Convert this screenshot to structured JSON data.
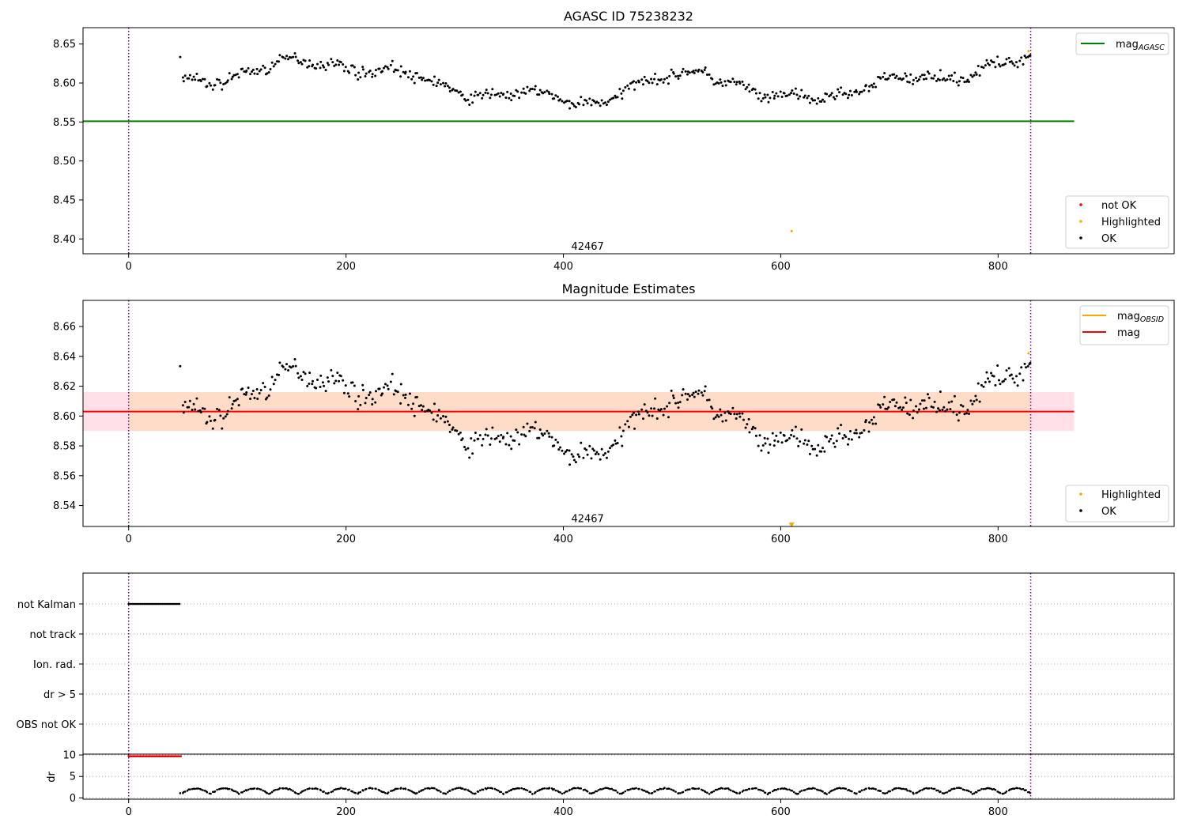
{
  "figure": {
    "title_top": "AGASC ID 75238232",
    "title_mid": "Magnitude Estimates"
  },
  "chart_data": [
    {
      "type": "scatter",
      "title": "AGASC ID 75238232",
      "xlabel": "",
      "ylabel": "",
      "xlim": [
        -42,
        962
      ],
      "ylim": [
        8.381,
        8.671
      ],
      "x_ticks": [
        0,
        200,
        400,
        600,
        800
      ],
      "y_ticks": [
        8.4,
        8.45,
        8.5,
        8.55,
        8.6,
        8.65
      ],
      "y_tick_labels": [
        "8.40",
        "8.45",
        "8.50",
        "8.55",
        "8.60",
        "8.65"
      ],
      "obsid_label": {
        "text": "42467",
        "x": 415,
        "y": 8.39
      },
      "obs_boundaries": [
        0,
        830
      ],
      "mag_agasc": 8.551,
      "mag_agasc_range": [
        -42,
        870
      ],
      "ok_series": {
        "x_start": 48,
        "x_end": 830,
        "count": 540,
        "segments": [
          {
            "x": [
              48,
              180
            ],
            "y": [
              8.6,
              8.63
            ]
          },
          {
            "x": [
              180,
              330
            ],
            "y": [
              8.63,
              8.585
            ]
          },
          {
            "x": [
              330,
              430
            ],
            "y": [
              8.585,
              8.578
            ]
          },
          {
            "x": [
              430,
              530
            ],
            "y": [
              8.578,
              8.62
            ]
          },
          {
            "x": [
              530,
              590
            ],
            "y": [
              8.62,
              8.575
            ]
          },
          {
            "x": [
              590,
              830
            ],
            "y": [
              8.575,
              8.628
            ]
          }
        ]
      },
      "highlighted": [
        {
          "x": 610,
          "y": 8.41
        },
        {
          "x": 828,
          "y": 8.641
        }
      ],
      "legend_upper": [
        {
          "label": "mag",
          "sub": "AGASC",
          "color": "#008000",
          "kind": "line"
        }
      ],
      "legend_lower": [
        {
          "label": "not OK",
          "color": "#ff0000",
          "kind": "dot"
        },
        {
          "label": "Highlighted",
          "color": "#ffa500",
          "kind": "dot"
        },
        {
          "label": "OK",
          "color": "#000000",
          "kind": "dot"
        }
      ]
    },
    {
      "type": "scatter",
      "title": "Magnitude Estimates",
      "xlabel": "",
      "ylabel": "",
      "xlim": [
        -42,
        962
      ],
      "ylim": [
        8.526,
        8.6775
      ],
      "x_ticks": [
        0,
        200,
        400,
        600,
        800
      ],
      "y_ticks": [
        8.54,
        8.56,
        8.58,
        8.6,
        8.62,
        8.64,
        8.66
      ],
      "y_tick_labels": [
        "8.54",
        "8.56",
        "8.58",
        "8.60",
        "8.62",
        "8.64",
        "8.66"
      ],
      "obsid_label": {
        "text": "42467",
        "x": 415,
        "y": 8.531
      },
      "obs_boundaries": [
        0,
        830
      ],
      "mag": 8.603,
      "mag_band": [
        8.59,
        8.616
      ],
      "mag_obsid_band": [
        8.59,
        8.616
      ],
      "mag_range": [
        -42,
        870
      ],
      "highlighted": [
        {
          "x": 610,
          "y": 8.527,
          "marker": "triangle"
        },
        {
          "x": 828,
          "y": 8.642
        }
      ],
      "legend_upper": [
        {
          "label": "mag",
          "sub": "OBSID",
          "color": "#ffa500",
          "kind": "line"
        },
        {
          "label": "mag",
          "sub": "",
          "color": "#ff0000",
          "kind": "line"
        }
      ],
      "legend_lower": [
        {
          "label": "Highlighted",
          "color": "#ffa500",
          "kind": "dot"
        },
        {
          "label": "OK",
          "color": "#000000",
          "kind": "dot"
        }
      ]
    },
    {
      "type": "scatter",
      "title": "",
      "xlabel": "",
      "ylabel": "",
      "xlim": [
        -42,
        962
      ],
      "flag_rows": [
        "not Kalman",
        "not track",
        "Ion. rad.",
        "dr > 5",
        "OBS not OK"
      ],
      "flag_spans": [
        {
          "row": "not Kalman",
          "x": [
            0,
            48
          ],
          "color": "#000000"
        }
      ],
      "obs_boundaries": [
        0,
        830
      ]
    },
    {
      "type": "scatter",
      "title": "",
      "xlabel": "",
      "ylabel": "dr",
      "xlim": [
        -42,
        962
      ],
      "ylim": [
        -0.3,
        10.2
      ],
      "x_ticks": [
        0,
        200,
        400,
        600,
        800
      ],
      "y_ticks": [
        0,
        5,
        10
      ],
      "y_tick_labels": [
        "0",
        "5",
        "10"
      ],
      "not_ok_span": {
        "x": [
          0,
          48
        ],
        "y": 9.7
      },
      "dr_series": {
        "x_start": 48,
        "x_end": 830,
        "min": 0.2,
        "max": 2.6
      },
      "obs_boundaries": [
        0,
        830
      ]
    }
  ],
  "colors": {
    "ok": "#000000",
    "highlighted": "#ffa500",
    "not_ok": "#ff0000",
    "agasc_line": "#008000",
    "mag_line": "#ff0000",
    "obsid_band": "#ffdcc8",
    "mag_band": "#ffe0e8",
    "obs_boundary": "#800080",
    "grid": "#b0b0b0"
  }
}
